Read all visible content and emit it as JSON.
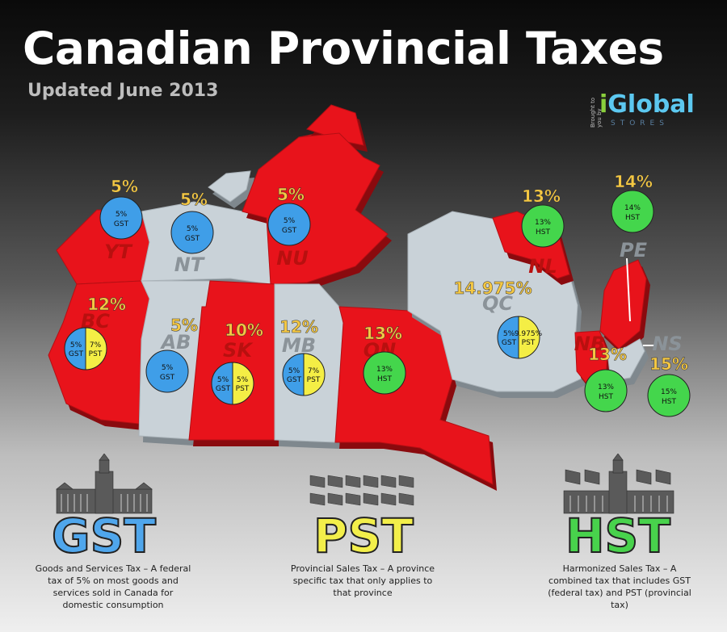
{
  "title": "Canadian Provincial Taxes",
  "subtitle": "Updated June 2013",
  "brand": {
    "small": "Brought to you by",
    "name_i": "i",
    "name_rest": "Global",
    "sub": "STORES"
  },
  "colors": {
    "red": "#e8131b",
    "grey": "#c9d2d8",
    "gst": "#3f9ee8",
    "pst": "#f4ee45",
    "hst": "#44d64c",
    "amber": "#f5c842"
  },
  "provinces": [
    {
      "code": "YT",
      "rate": "5%",
      "type": "gst",
      "gst": "5%",
      "gst_label": "GST"
    },
    {
      "code": "NT",
      "rate": "5%",
      "type": "gst",
      "gst": "5%",
      "gst_label": "GST"
    },
    {
      "code": "NU",
      "rate": "5%",
      "type": "gst",
      "gst": "5%",
      "gst_label": "GST"
    },
    {
      "code": "BC",
      "rate": "12%",
      "type": "split",
      "gst": "5%",
      "gst_label": "GST",
      "pst": "7%",
      "pst_label": "PST"
    },
    {
      "code": "AB",
      "rate": "5%",
      "type": "gst",
      "gst": "5%",
      "gst_label": "GST"
    },
    {
      "code": "SK",
      "rate": "10%",
      "type": "split",
      "gst": "5%",
      "gst_label": "GST",
      "pst": "5%",
      "pst_label": "PST"
    },
    {
      "code": "MB",
      "rate": "12%",
      "type": "split",
      "gst": "5%",
      "gst_label": "GST",
      "pst": "7%",
      "pst_label": "PST"
    },
    {
      "code": "ON",
      "rate": "13%",
      "type": "hst",
      "hst": "13%",
      "hst_label": "HST"
    },
    {
      "code": "QC",
      "rate": "14.975%",
      "type": "split",
      "gst": "5%",
      "gst_label": "GST",
      "pst": "9.975%",
      "pst_label": "PST"
    },
    {
      "code": "NL",
      "rate": "13%",
      "type": "hst",
      "hst": "13%",
      "hst_label": "HST"
    },
    {
      "code": "PE",
      "rate": "14%",
      "type": "hst",
      "hst": "14%",
      "hst_label": "HST"
    },
    {
      "code": "NB",
      "rate": "13%",
      "type": "hst",
      "hst": "13%",
      "hst_label": "HST"
    },
    {
      "code": "NS",
      "rate": "15%",
      "type": "hst",
      "hst": "15%",
      "hst_label": "HST"
    }
  ],
  "legend": {
    "gst": {
      "title": "GST",
      "desc": "Goods and Services Tax – A federal tax of 5% on most goods and services sold in Canada for domestic consumption"
    },
    "pst": {
      "title": "PST",
      "desc": "Provincial Sales Tax – A province specific tax that only applies to that province"
    },
    "hst": {
      "title": "HST",
      "desc": "Harmonized Sales Tax – A combined tax that includes GST (federal tax) and PST (provincial tax)"
    }
  }
}
